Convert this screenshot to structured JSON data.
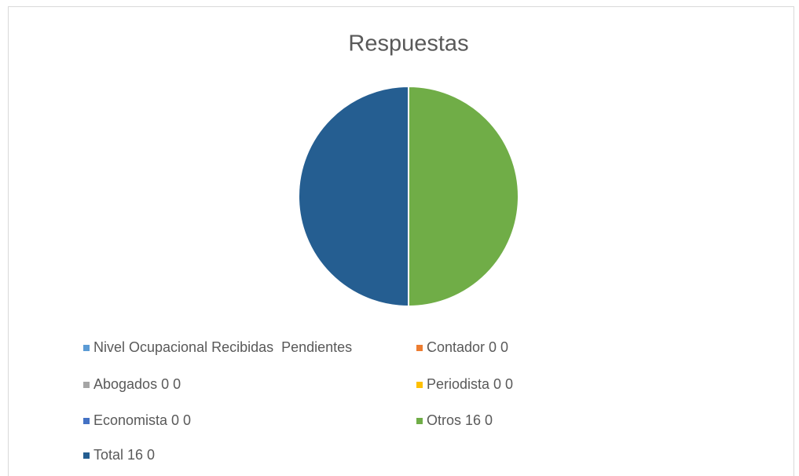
{
  "chart_data": {
    "type": "pie",
    "title": "Respuestas",
    "categories": [
      "Nivel Ocupacional Recibidas  Pendientes",
      "Contador 0 0",
      "Abogados 0 0",
      "Periodista 0 0",
      "Economista 0 0",
      "Otros 16 0",
      "Total 16 0"
    ],
    "values": [
      null,
      0,
      0,
      0,
      0,
      16,
      16
    ],
    "colors": [
      "#5b9bd5",
      "#ed7d31",
      "#a5a5a5",
      "#ffc000",
      "#4472c4",
      "#70ad47",
      "#255e91"
    ],
    "legend": "bottom"
  }
}
